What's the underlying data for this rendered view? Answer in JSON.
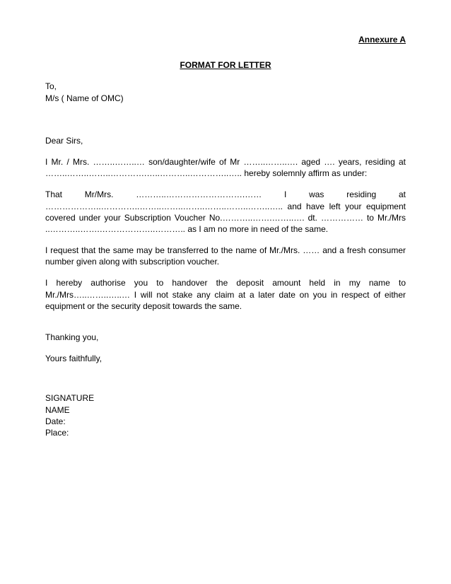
{
  "annexure": "Annexure A",
  "title": "FORMAT FOR LETTER",
  "to_line1": "To,",
  "to_line2": "M/s  ( Name of OMC)",
  "salutation": "Dear Sirs,",
  "para1": "I Mr. / Mrs.            ……..……..… son/daughter/wife of Mr ……..……..…. aged …. years, residing at ……..……..……..………….…..………..…………..….. hereby solemnly affirm as under:",
  "para2": "That     Mr/Mrs.     ………..……………………….……     I     was     residing     at ………………..…………..……..……..……..……..……..……..…..     and     have     left     your equipment covered under your Subscription Voucher No.………..…….……..…. dt. …………… to Mr./Mrs ..………..…….………………..……….. as I am no more in need of the same.",
  "para3": "I request that the same may be transferred to the name of Mr./Mrs. …… and a fresh consumer number given along with subscription voucher.",
  "para4": "I hereby authorise you to handover the deposit amount held in my name to  Mr./Mrs…..……..…..… I will not stake any claim at a later date on you in respect of either equipment or the security deposit towards the same.",
  "thanking": "Thanking you,",
  "faithfully": "Yours faithfully,",
  "sig_signature": "SIGNATURE",
  "sig_name": "NAME",
  "sig_date": "Date:",
  "sig_place": "Place:",
  "colors": {
    "text": "#000000",
    "background": "#ffffff"
  },
  "typography": {
    "font_family": "Arial",
    "body_fontsize_pt": 9,
    "title_bold": true,
    "annexure_bold": true
  }
}
